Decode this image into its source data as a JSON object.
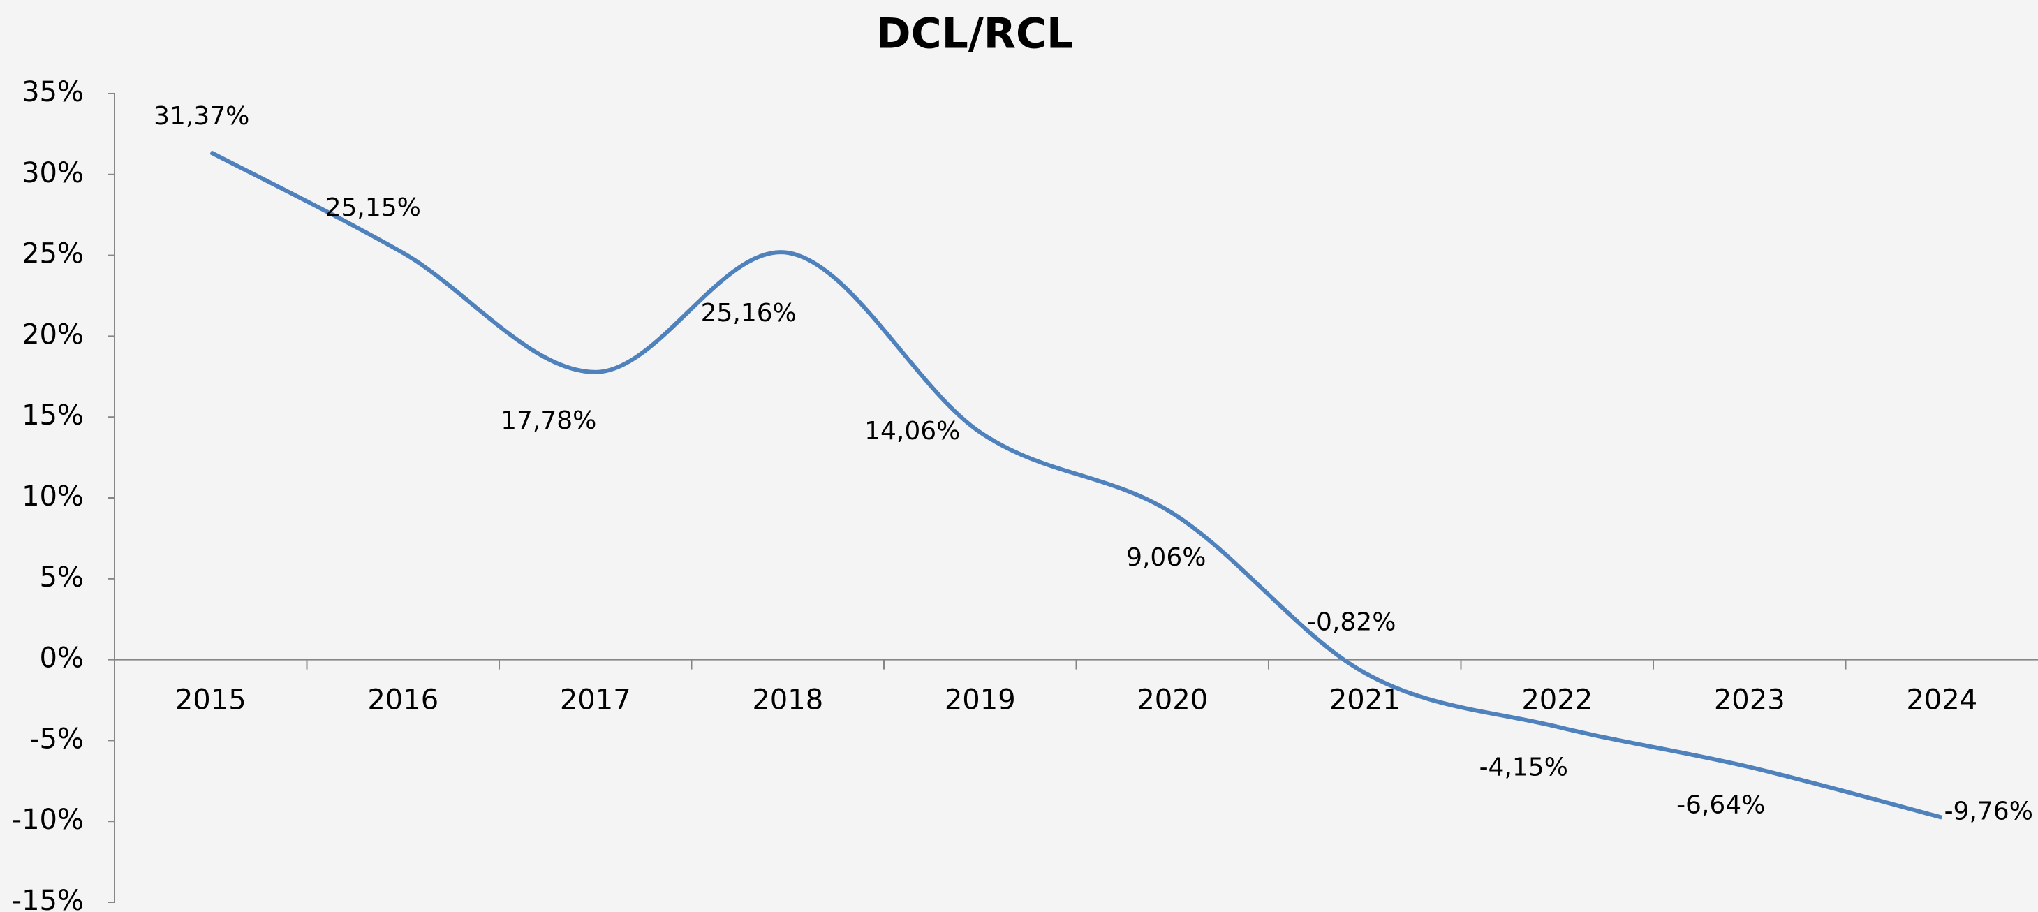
{
  "chart_data": {
    "type": "line",
    "title": "DCL/RCL",
    "categories": [
      "2015",
      "2016",
      "2017",
      "2018",
      "2019",
      "2020",
      "2021",
      "2022",
      "2023",
      "2024"
    ],
    "series": [
      {
        "name": "DCL/RCL",
        "color": "#4f81bd",
        "values": [
          31.37,
          25.15,
          17.78,
          25.16,
          14.06,
          9.06,
          -0.82,
          -4.15,
          -6.64,
          -9.76
        ],
        "value_labels": [
          "31,37%",
          "25,15%",
          "17,78%",
          "25,16%",
          "14,06%",
          "9,06%",
          "-0,82%",
          "-4,15%",
          "-6,64%",
          "-9,76%"
        ]
      }
    ],
    "ylim": [
      -15,
      35
    ],
    "yticks": [
      {
        "value": -15,
        "label": "-15%"
      },
      {
        "value": -10,
        "label": "-10%"
      },
      {
        "value": -5,
        "label": "-5%"
      },
      {
        "value": 0,
        "label": "0%"
      },
      {
        "value": 5,
        "label": "5%"
      },
      {
        "value": 10,
        "label": "10%"
      },
      {
        "value": 15,
        "label": "15%"
      },
      {
        "value": 20,
        "label": "20%"
      },
      {
        "value": 25,
        "label": "25%"
      },
      {
        "value": 30,
        "label": "30%"
      },
      {
        "value": 35,
        "label": "35%"
      }
    ],
    "grid": false,
    "smooth": true
  }
}
